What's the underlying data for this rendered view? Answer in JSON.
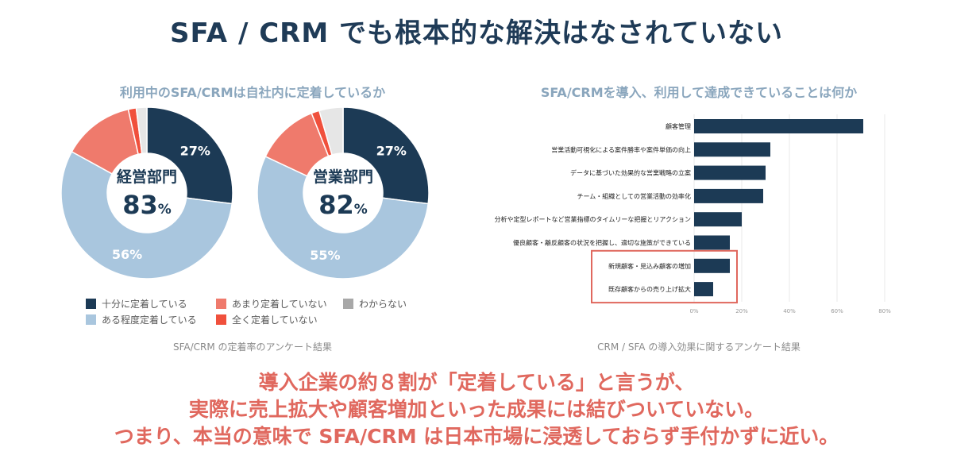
{
  "title": "SFA / CRM でも根本的な解決はなされていない",
  "left_panel": {
    "title": "利用中のSFA/CRMは自社内に定着しているか",
    "caption": "SFA/CRM の定着率のアンケート結果"
  },
  "right_panel": {
    "title": "SFA/CRMを導入、利用して達成できていることは何か",
    "caption": "CRM / SFA の導入効果に関するアンケート結果"
  },
  "conclusion": [
    "導入企業の約８割が「定着している」と言うが、",
    "実際に売上拡大や顧客増加といった成果には結びついていない。",
    "つまり、本当の意味で SFA/CRM は日本市場に浸透しておらず手付かずに近い。"
  ],
  "colors": {
    "navy": "#1c3a55",
    "light_blue": "#a9c6de",
    "salmon": "#ef7a6c",
    "red": "#f0503c",
    "gray": "#e6e6e6",
    "bar": "#1c3a55",
    "highlight": "#e0685e",
    "legend_gray": "#a8a8a8"
  },
  "chart_data": [
    {
      "type": "pie",
      "center_label": "経営部門",
      "center_value": "83",
      "center_unit": "%",
      "slices": [
        {
          "name": "十分に定着している",
          "value": 27,
          "label": "27%",
          "color": "#1c3a55"
        },
        {
          "name": "ある程度定着している",
          "value": 56,
          "label": "56%",
          "color": "#a9c6de"
        },
        {
          "name": "あまり定着していない",
          "value": 13.5,
          "label": "",
          "color": "#ef7a6c"
        },
        {
          "name": "全く定着していない",
          "value": 1.5,
          "label": "",
          "color": "#f0503c"
        },
        {
          "name": "わからない",
          "value": 2,
          "label": "",
          "color": "#e6e6e6"
        }
      ]
    },
    {
      "type": "pie",
      "center_label": "営業部門",
      "center_value": "82",
      "center_unit": "%",
      "slices": [
        {
          "name": "十分に定着している",
          "value": 27,
          "label": "27%",
          "color": "#1c3a55"
        },
        {
          "name": "ある程度定着している",
          "value": 55,
          "label": "55%",
          "color": "#a9c6de"
        },
        {
          "name": "あまり定着していない",
          "value": 12,
          "label": "",
          "color": "#ef7a6c"
        },
        {
          "name": "全く定着していない",
          "value": 1.5,
          "label": "",
          "color": "#f0503c"
        },
        {
          "name": "わからない",
          "value": 4.5,
          "label": "",
          "color": "#e6e6e6"
        }
      ]
    },
    {
      "type": "bar",
      "orientation": "horizontal",
      "categories": [
        "顧客管理",
        "営業活動可視化による案件勝率や案件単価の向上",
        "データに基づいた効果的な営業戦略の立案",
        "チーム・組織としての営業活動の効率化",
        "分析や定型レポートなど営業指標のタイムリーな把握とリアクション",
        "優良顧客・離反顧客の状況を把握し、適切な施策ができている",
        "新規顧客・見込み顧客の増加",
        "既存顧客からの売り上げ拡大"
      ],
      "values": [
        71,
        32,
        30,
        29,
        20,
        15,
        15,
        8
      ],
      "xlim": [
        0,
        80
      ],
      "xticks": [
        "0%",
        "20%",
        "40%",
        "60%",
        "80%"
      ],
      "grid": true,
      "highlighted": [
        6,
        7
      ]
    }
  ],
  "legend": [
    {
      "label": "十分に定着している",
      "color": "#1c3a55"
    },
    {
      "label": "あまり定着していない",
      "color": "#ef7a6c"
    },
    {
      "label": "わからない",
      "color": "#a8a8a8"
    },
    {
      "label": "ある程度定着している",
      "color": "#a9c6de"
    },
    {
      "label": "全く定着していない",
      "color": "#f0503c"
    }
  ]
}
